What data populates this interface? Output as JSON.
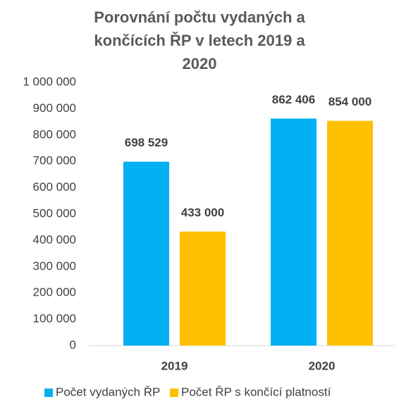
{
  "chart_data": {
    "type": "bar",
    "title": "Porovnání počtu vydaných a končících ŘP v letech 2019 a 2020",
    "categories": [
      "2019",
      "2020"
    ],
    "series": [
      {
        "name": "Počet vydaných ŘP",
        "color": "#00b0f0",
        "values": [
          698529,
          862406
        ],
        "value_labels": [
          "698 529",
          "862 406"
        ]
      },
      {
        "name": "Počet ŘP s končící platností",
        "color": "#ffc000",
        "values": [
          433000,
          854000
        ],
        "value_labels": [
          "433 000",
          "854 000"
        ]
      }
    ],
    "ylim": [
      0,
      1000000
    ],
    "yticks": [
      0,
      {
        "value": 100000,
        "label": "100 000"
      },
      {
        "value": 200000,
        "label": "200 000"
      },
      {
        "value": 300000,
        "label": "300 000"
      },
      {
        "value": 400000,
        "label": "400 000"
      },
      {
        "value": 500000,
        "label": "500 000"
      },
      {
        "value": 600000,
        "label": "600 000"
      },
      {
        "value": 700000,
        "label": "700 000"
      },
      {
        "value": 800000,
        "label": "800 000"
      },
      {
        "value": 900000,
        "label": "900 000"
      },
      {
        "value": 1000000,
        "label": "1 000 000"
      }
    ],
    "grid": false,
    "legend": "bottom"
  }
}
